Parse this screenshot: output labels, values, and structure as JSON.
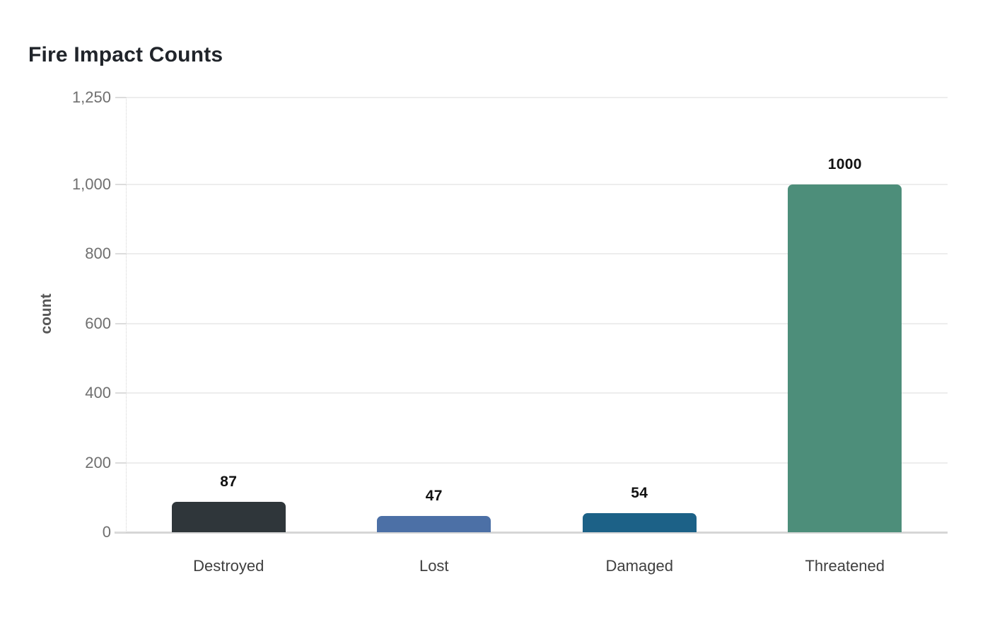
{
  "chart_data": {
    "type": "bar",
    "title": "Fire Impact Counts",
    "xlabel": "",
    "ylabel": "count",
    "categories": [
      "Destroyed",
      "Lost",
      "Damaged",
      "Threatened"
    ],
    "values": [
      87,
      47,
      54,
      1000
    ],
    "value_labels": [
      "87",
      "47",
      "54",
      "1000"
    ],
    "bar_colors": [
      "#2f363a",
      "#4c70a6",
      "#1c6187",
      "#4d8e7a"
    ],
    "bar_patterns": [
      "dots",
      "solid",
      "solid",
      "solid"
    ],
    "ylim": [
      0,
      1250
    ],
    "yticks": [
      0,
      200,
      400,
      600,
      800,
      1000,
      1250
    ],
    "ytick_labels": [
      "0",
      "200",
      "400",
      "600",
      "800",
      "1,000",
      "1,250"
    ],
    "grid": true,
    "legend": false,
    "colors": {
      "background": "#ffffff",
      "grid": "#ededed",
      "axis": "#d6d6d6",
      "tick_mark": "#dcdcdc",
      "tick_text": "#6f6f6f",
      "category_text": "#3f3f3f",
      "value_text": "#111111",
      "title_text": "#20242a",
      "ylabel_text": "#565656",
      "dot_pattern": "#191d1f"
    }
  }
}
